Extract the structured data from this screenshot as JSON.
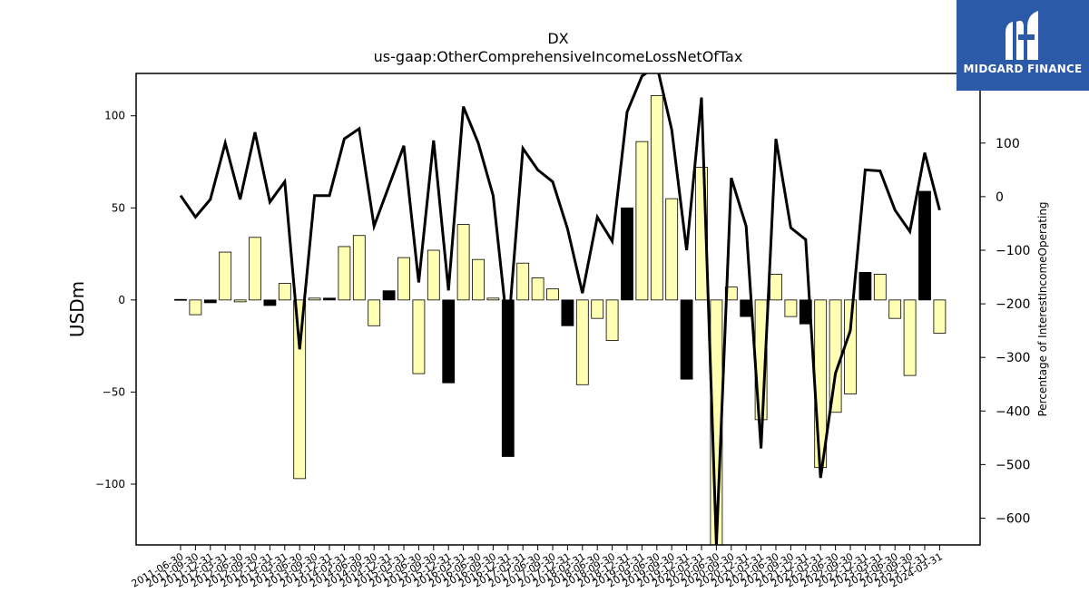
{
  "brand": {
    "name": "MIDGARD FINANCE",
    "logo_icon": "midgard-m-logo-icon",
    "background": "#2c5aa8"
  },
  "colors": {
    "positive_bar": "#ffffb3",
    "negative_bar_highlight": "#000000",
    "line": "#000000"
  },
  "chart_data": {
    "type": "bar",
    "title": "DX",
    "subtitle": "us-gaap:OtherComprehensiveIncomeLossNetOfTax",
    "ylabel": "USDm",
    "y2label": "Percentage of InterestIncomeOperating",
    "ylim": [
      -133,
      123
    ],
    "y2lim": [
      -650,
      230
    ],
    "yticks": [
      -100,
      -50,
      0,
      50,
      100
    ],
    "y2ticks": [
      -600,
      -500,
      -400,
      -300,
      -200,
      -100,
      0,
      100
    ],
    "categories": [
      "2011-06-30",
      "2011-09-30",
      "2011-12-31",
      "2012-03-31",
      "2012-06-30",
      "2012-09-30",
      "2012-12-31",
      "2013-03-31",
      "2013-06-30",
      "2013-09-30",
      "2013-12-31",
      "2014-03-31",
      "2014-06-30",
      "2014-09-30",
      "2014-12-31",
      "2015-03-31",
      "2015-06-30",
      "2015-09-30",
      "2015-12-31",
      "2016-03-31",
      "2016-06-30",
      "2016-09-30",
      "2016-12-31",
      "2017-03-31",
      "2017-06-30",
      "2017-09-30",
      "2017-12-31",
      "2018-03-31",
      "2018-06-30",
      "2018-09-30",
      "2018-12-31",
      "2019-03-31",
      "2019-06-30",
      "2019-09-30",
      "2019-12-31",
      "2020-03-31",
      "2020-06-30",
      "2020-09-30",
      "2020-12-31",
      "2021-03-31",
      "2021-06-30",
      "2021-09-30",
      "2021-12-31",
      "2022-03-31",
      "2022-06-30",
      "2022-09-30",
      "2022-12-31",
      "2023-03-31",
      "2023-06-30",
      "2023-09-30",
      "2023-12-31",
      "2024-03-31"
    ],
    "series": [
      {
        "kind": "bar",
        "values": [
          0.3,
          -8,
          -1.5,
          26,
          -1,
          34,
          -3,
          9,
          -97,
          1,
          1,
          29,
          35,
          -14,
          5,
          23,
          -40,
          27,
          -45,
          41,
          22,
          1,
          -85,
          20,
          12,
          6,
          -14,
          -46,
          -10,
          -22,
          50,
          86,
          111,
          55,
          -43,
          72,
          -150,
          7,
          -9,
          -65,
          14,
          -9,
          -13,
          -91,
          -61,
          -51,
          15,
          14,
          -10,
          -41,
          59,
          -18
        ],
        "highlight": [
          1,
          0,
          1,
          0,
          0,
          0,
          1,
          0,
          0,
          0,
          1,
          0,
          0,
          0,
          1,
          0,
          0,
          0,
          1,
          0,
          0,
          0,
          1,
          0,
          0,
          0,
          1,
          0,
          0,
          0,
          1,
          0,
          0,
          0,
          1,
          0,
          0,
          0,
          1,
          0,
          0,
          0,
          1,
          0,
          0,
          0,
          1,
          0,
          0,
          0,
          1,
          0
        ]
      },
      {
        "kind": "line",
        "axis": "y2",
        "values": [
          2,
          -38,
          -5,
          100,
          -5,
          120,
          -10,
          28,
          -285,
          2,
          2,
          108,
          127,
          -55,
          20,
          95,
          -160,
          105,
          -175,
          168,
          100,
          2,
          -255,
          90,
          50,
          28,
          -60,
          -180,
          -38,
          -83,
          158,
          225,
          245,
          125,
          -100,
          185,
          -650,
          35,
          -55,
          -470,
          108,
          -58,
          -80,
          -525,
          -330,
          -250,
          50,
          48,
          -25,
          -65,
          82,
          -25
        ]
      }
    ]
  }
}
